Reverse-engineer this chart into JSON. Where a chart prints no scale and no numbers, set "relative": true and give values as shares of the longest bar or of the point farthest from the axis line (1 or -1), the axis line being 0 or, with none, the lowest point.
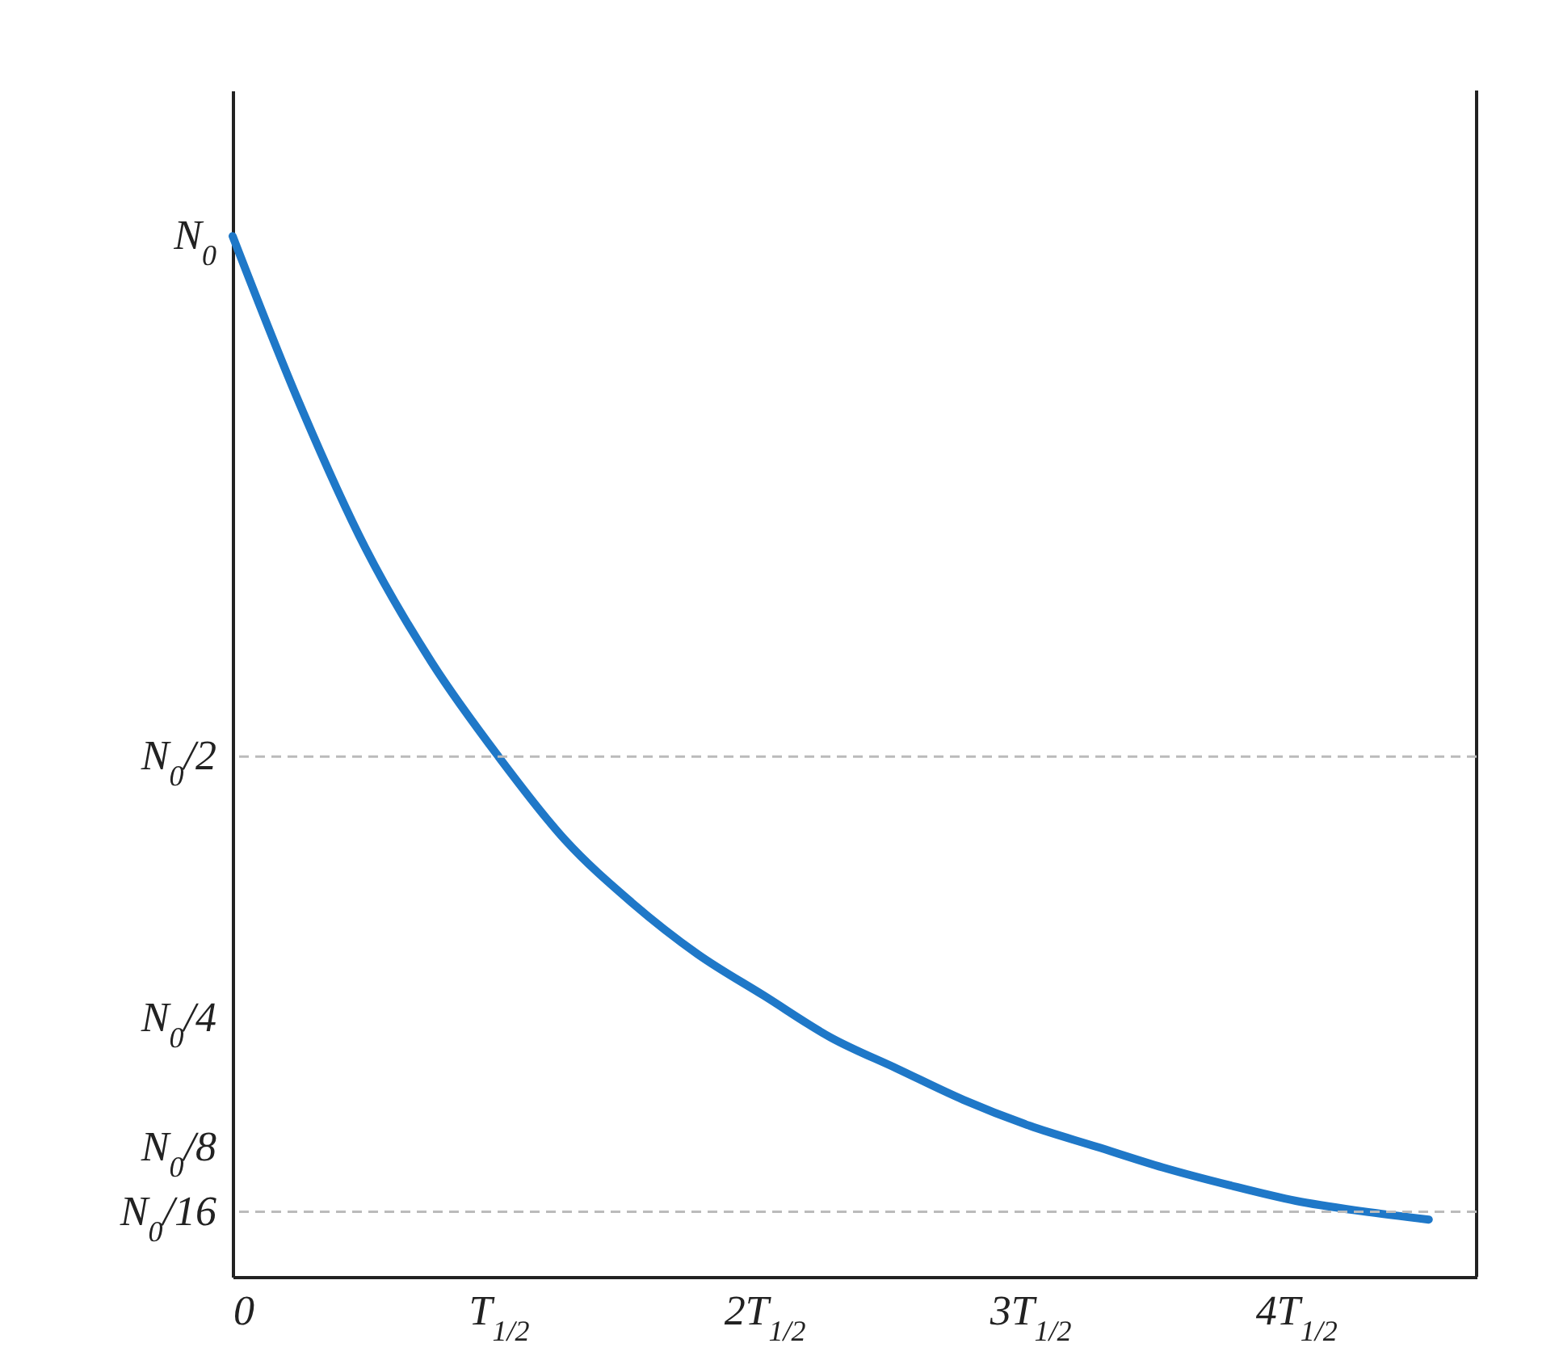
{
  "chart_data": {
    "type": "line",
    "relative": true,
    "categories": [
      "0",
      null,
      null,
      null,
      "T$_{1/2}$",
      null,
      null,
      null,
      "2T$_{1/2}$",
      null,
      null,
      null,
      "3T$_{1/2}$",
      null,
      null,
      null,
      "4T$_{1/2}$",
      null,
      null
    ],
    "series": [
      {
        "color": "#1f78c8",
        "values": [
          1,
          0.84,
          0.7,
          0.59,
          0.5,
          0.42,
          0.36,
          0.31,
          0.27,
          0.23,
          0.2,
          0.17,
          0.145,
          0.125,
          0.105,
          0.088,
          0.073,
          0.063,
          0.055
        ]
      }
    ],
    "annotations": [
      {
        "text": "N$_{0}$",
        "x": "0",
        "y": 1
      },
      "N$_{0}$/4",
      "N$_{0}$/8"
    ],
    "ref_lines": [
      {
        "axis": "y",
        "value": 0.5,
        "label": "N$_{0}$/2",
        "color": "#bbbbbb",
        "line_style": "dashed"
      },
      {
        "axis": "y",
        "value": 0.0625,
        "label": "N$_{0}$/16",
        "color": "#bbbbbb",
        "line_style": "dashed"
      }
    ],
    "grid": false,
    "marker": "none",
    "line_style": "solid"
  }
}
